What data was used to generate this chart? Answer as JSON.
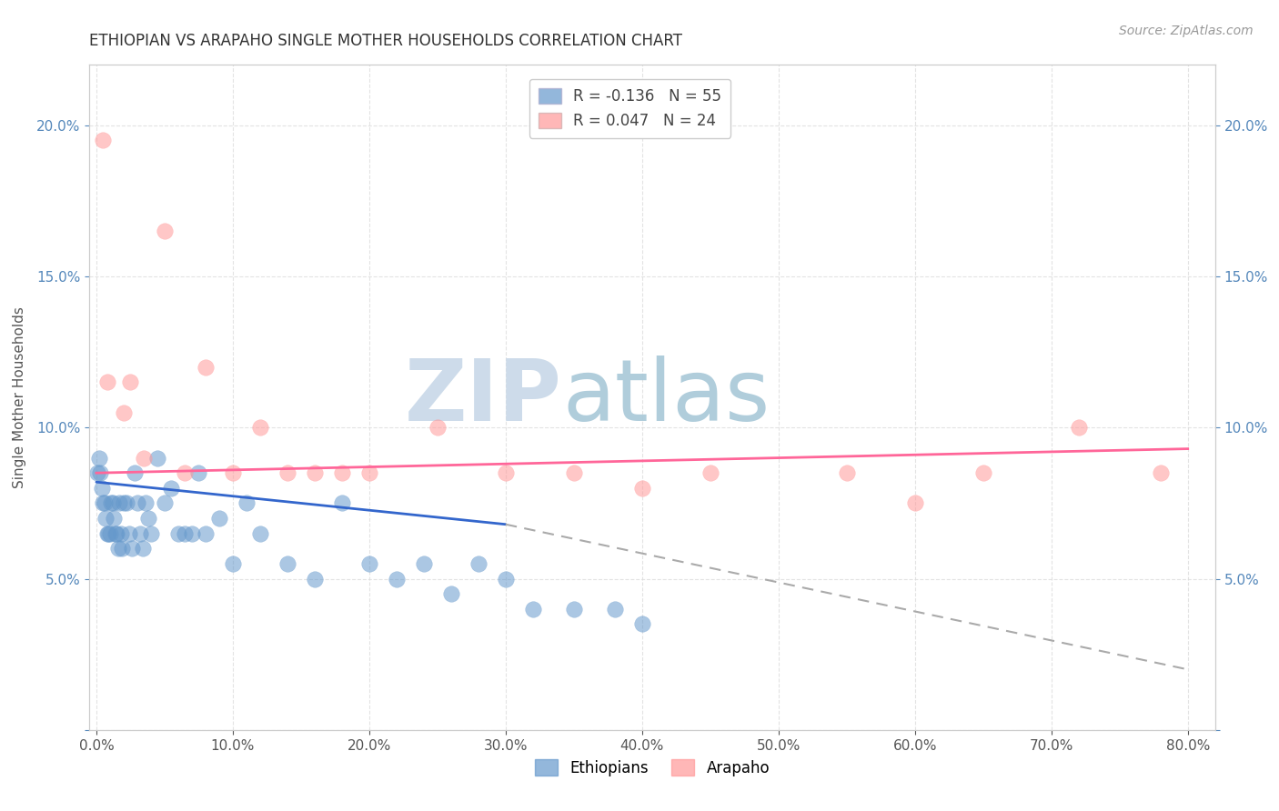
{
  "title": "ETHIOPIAN VS ARAPAHO SINGLE MOTHER HOUSEHOLDS CORRELATION CHART",
  "source_text": "Source: ZipAtlas.com",
  "ylabel": "Single Mother Households",
  "xlabel": "",
  "xlim": [
    -0.005,
    0.82
  ],
  "ylim": [
    0.0,
    0.22
  ],
  "xticks": [
    0.0,
    0.1,
    0.2,
    0.3,
    0.4,
    0.5,
    0.6,
    0.7,
    0.8
  ],
  "xticklabels": [
    "0.0%",
    "10.0%",
    "20.0%",
    "30.0%",
    "40.0%",
    "50.0%",
    "60.0%",
    "70.0%",
    "80.0%"
  ],
  "yticks": [
    0.0,
    0.05,
    0.1,
    0.15,
    0.2
  ],
  "yticklabels": [
    "",
    "5.0%",
    "10.0%",
    "15.0%",
    "20.0%"
  ],
  "legend_r1": "R = -0.136",
  "legend_n1": "N = 55",
  "legend_r2": "R = 0.047",
  "legend_n2": "N = 24",
  "blue_color": "#6699CC",
  "pink_color": "#FF9999",
  "blue_line_color": "#3366CC",
  "pink_line_color": "#FF6699",
  "dash_line_color": "#AAAAAA",
  "watermark_zip": "ZIP",
  "watermark_atlas": "atlas",
  "watermark_color_zip": "#C8D8E8",
  "watermark_color_atlas": "#A8C8D8",
  "ethiopian_x": [
    0.001,
    0.002,
    0.003,
    0.004,
    0.005,
    0.006,
    0.007,
    0.008,
    0.009,
    0.01,
    0.011,
    0.012,
    0.013,
    0.014,
    0.015,
    0.016,
    0.017,
    0.018,
    0.019,
    0.02,
    0.022,
    0.024,
    0.026,
    0.028,
    0.03,
    0.032,
    0.034,
    0.036,
    0.038,
    0.04,
    0.045,
    0.05,
    0.055,
    0.06,
    0.065,
    0.07,
    0.075,
    0.08,
    0.09,
    0.1,
    0.11,
    0.12,
    0.14,
    0.16,
    0.18,
    0.2,
    0.22,
    0.24,
    0.26,
    0.28,
    0.3,
    0.32,
    0.35,
    0.38,
    0.4
  ],
  "ethiopian_y": [
    0.085,
    0.09,
    0.085,
    0.08,
    0.075,
    0.075,
    0.07,
    0.065,
    0.065,
    0.065,
    0.075,
    0.075,
    0.07,
    0.065,
    0.065,
    0.06,
    0.075,
    0.065,
    0.06,
    0.075,
    0.075,
    0.065,
    0.06,
    0.085,
    0.075,
    0.065,
    0.06,
    0.075,
    0.07,
    0.065,
    0.09,
    0.075,
    0.08,
    0.065,
    0.065,
    0.065,
    0.085,
    0.065,
    0.07,
    0.055,
    0.075,
    0.065,
    0.055,
    0.05,
    0.075,
    0.055,
    0.05,
    0.055,
    0.045,
    0.055,
    0.05,
    0.04,
    0.04,
    0.04,
    0.035
  ],
  "arapaho_x": [
    0.005,
    0.008,
    0.02,
    0.025,
    0.035,
    0.05,
    0.065,
    0.08,
    0.1,
    0.12,
    0.14,
    0.16,
    0.18,
    0.2,
    0.25,
    0.3,
    0.35,
    0.4,
    0.45,
    0.55,
    0.6,
    0.65,
    0.72,
    0.78
  ],
  "arapaho_y": [
    0.195,
    0.115,
    0.105,
    0.115,
    0.09,
    0.165,
    0.085,
    0.12,
    0.085,
    0.1,
    0.085,
    0.085,
    0.085,
    0.085,
    0.1,
    0.085,
    0.085,
    0.08,
    0.085,
    0.085,
    0.075,
    0.085,
    0.1,
    0.085
  ],
  "blue_line_x_start": 0.0,
  "blue_line_x_solid_end": 0.3,
  "blue_line_x_end": 0.8,
  "blue_line_y_start": 0.082,
  "blue_line_y_solid_end": 0.068,
  "blue_line_y_end": 0.02,
  "pink_line_x_start": 0.0,
  "pink_line_x_end": 0.8,
  "pink_line_y_start": 0.085,
  "pink_line_y_end": 0.093
}
